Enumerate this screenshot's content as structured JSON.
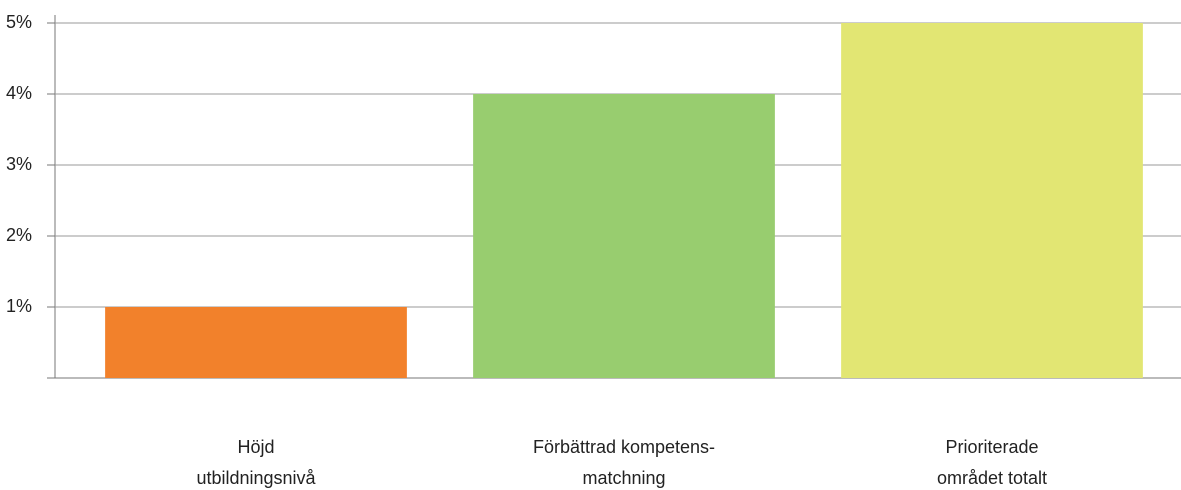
{
  "chart_data": {
    "type": "bar",
    "categories": [
      "Höjd\nutbildningsnivå",
      "Förbättrad kompetens-\nmatchning",
      "Prioriterade\nområdet totalt"
    ],
    "values": [
      1,
      4,
      5
    ],
    "colors": [
      "#f2812b",
      "#98cd6f",
      "#e2e673"
    ],
    "ylim": [
      0,
      5
    ],
    "yticks": [
      {
        "value": 1,
        "label": "1%"
      },
      {
        "value": 2,
        "label": "2%"
      },
      {
        "value": 3,
        "label": "3%"
      },
      {
        "value": 4,
        "label": "4%"
      },
      {
        "value": 5,
        "label": "5%"
      }
    ],
    "grid": true
  }
}
